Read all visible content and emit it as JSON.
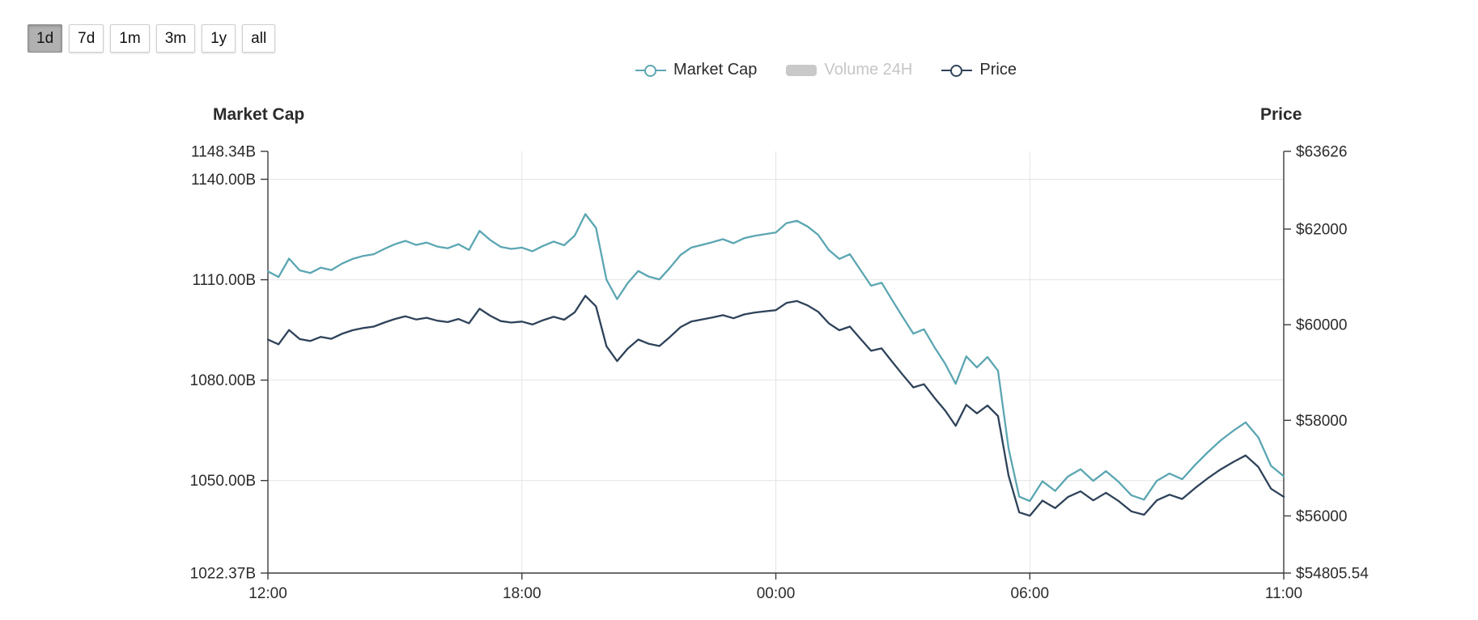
{
  "toolbar": {
    "range_buttons": [
      {
        "label": "1d",
        "active": true
      },
      {
        "label": "7d",
        "active": false
      },
      {
        "label": "1m",
        "active": false
      },
      {
        "label": "3m",
        "active": false
      },
      {
        "label": "1y",
        "active": false
      },
      {
        "label": "all",
        "active": false
      }
    ]
  },
  "legend": {
    "position": "top-center",
    "items": [
      {
        "label": "Market Cap",
        "marker": "line-circle",
        "color": "#5BA6B2",
        "enabled": true
      },
      {
        "label": "Volume 24H",
        "marker": "rect",
        "color": "#C9C9C9",
        "enabled": false
      },
      {
        "label": "Price",
        "marker": "line-circle",
        "color": "#2E4359",
        "enabled": true
      }
    ]
  },
  "chart_data": {
    "type": "line",
    "title": "",
    "left_axis": {
      "title": "Market Cap",
      "min": 1022.37,
      "max": 1148.34,
      "unit": "B",
      "ticks": [
        {
          "label": "1148.34B",
          "value": 1148.34
        },
        {
          "label": "1140.00B",
          "value": 1140
        },
        {
          "label": "1110.00B",
          "value": 1110
        },
        {
          "label": "1080.00B",
          "value": 1080
        },
        {
          "label": "1050.00B",
          "value": 1050
        },
        {
          "label": "1022.37B",
          "value": 1022.37
        }
      ]
    },
    "right_axis": {
      "title": "Price",
      "min": 54805.54,
      "max": 63626,
      "unit": "$",
      "ticks": [
        {
          "label": "$63626",
          "value": 63626
        },
        {
          "label": "$62000",
          "value": 62000
        },
        {
          "label": "$60000",
          "value": 60000
        },
        {
          "label": "$58000",
          "value": 58000
        },
        {
          "label": "$56000",
          "value": 56000
        },
        {
          "label": "$54805.54",
          "value": 54805.54
        }
      ]
    },
    "x_axis": {
      "labels": [
        {
          "label": "12:00",
          "pos": 0
        },
        {
          "label": "18:00",
          "pos": 0.25
        },
        {
          "label": "00:00",
          "pos": 0.5
        },
        {
          "label": "06:00",
          "pos": 0.75
        },
        {
          "label": "11:00",
          "pos": 1
        }
      ]
    },
    "gridlines": {
      "vertical_at": [
        0.25,
        0.5,
        0.75
      ],
      "horizontal": true
    },
    "x_times": [
      "12:00",
      "12:15",
      "12:30",
      "12:45",
      "13:00",
      "13:15",
      "13:30",
      "13:45",
      "14:00",
      "14:15",
      "14:30",
      "14:45",
      "15:00",
      "15:15",
      "15:30",
      "15:45",
      "16:00",
      "16:15",
      "16:30",
      "16:45",
      "17:00",
      "17:15",
      "17:30",
      "17:45",
      "18:00",
      "18:15",
      "18:30",
      "18:45",
      "19:00",
      "19:15",
      "19:30",
      "19:45",
      "20:00",
      "20:15",
      "20:30",
      "20:45",
      "21:00",
      "21:15",
      "21:30",
      "21:45",
      "22:00",
      "22:15",
      "22:30",
      "22:45",
      "23:00",
      "23:15",
      "23:30",
      "23:45",
      "00:00",
      "00:15",
      "00:30",
      "00:45",
      "01:00",
      "01:15",
      "01:30",
      "01:45",
      "02:00",
      "02:15",
      "02:30",
      "02:45",
      "03:00",
      "03:15",
      "03:30",
      "03:45",
      "04:00",
      "04:15",
      "04:30",
      "04:45",
      "05:00",
      "05:15",
      "05:30",
      "05:45",
      "06:00",
      "06:15",
      "06:30",
      "06:45",
      "07:00",
      "07:15",
      "07:30",
      "07:45",
      "08:00",
      "08:15",
      "08:30",
      "08:45",
      "09:00",
      "09:15",
      "09:30",
      "09:45",
      "10:00",
      "10:15",
      "10:30",
      "10:45",
      "11:00"
    ],
    "series": [
      {
        "name": "Market Cap",
        "axis": "left",
        "color": "#5BA6B2",
        "unit": "B",
        "values": [
          1112.5,
          1110.8,
          1116.3,
          1112.8,
          1112.0,
          1113.6,
          1112.9,
          1114.8,
          1116.2,
          1117.1,
          1117.6,
          1119.2,
          1120.6,
          1121.6,
          1120.4,
          1121.1,
          1119.9,
          1119.4,
          1120.6,
          1118.9,
          1124.6,
          1121.9,
          1119.8,
          1119.2,
          1119.6,
          1118.5,
          1120.1,
          1121.4,
          1120.3,
          1123.2,
          1129.6,
          1125.5,
          1110.0,
          1104.2,
          1109.0,
          1112.6,
          1110.9,
          1110.1,
          1113.6,
          1117.4,
          1119.6,
          1120.4,
          1121.2,
          1122.1,
          1120.9,
          1122.4,
          1123.1,
          1123.6,
          1124.1,
          1126.9,
          1127.6,
          1125.9,
          1123.4,
          1118.9,
          1116.2,
          1117.6,
          1112.9,
          1108.2,
          1109.1,
          1103.9,
          1098.8,
          1093.9,
          1095.2,
          1089.8,
          1084.9,
          1078.9,
          1087.1,
          1083.8,
          1086.9,
          1082.8,
          1059.5,
          1045.2,
          1043.9,
          1049.8,
          1046.9,
          1051.2,
          1053.4,
          1049.9,
          1052.8,
          1049.6,
          1045.6,
          1044.3,
          1049.9,
          1052.1,
          1050.4,
          1054.6,
          1058.4,
          1061.9,
          1064.8,
          1067.4,
          1062.9,
          1054.4,
          1051.3
        ]
      },
      {
        "name": "Price",
        "axis": "right",
        "color": "#2E4359",
        "unit": "$",
        "values": [
          59690,
          59590,
          59890,
          59700,
          59660,
          59745,
          59705,
          59810,
          59885,
          59930,
          59960,
          60045,
          60120,
          60175,
          60110,
          60145,
          60085,
          60055,
          60120,
          60030,
          60335,
          60190,
          60075,
          60045,
          60065,
          60005,
          60095,
          60165,
          60105,
          60260,
          60605,
          60385,
          59550,
          59240,
          59500,
          59690,
          59600,
          59555,
          59745,
          59950,
          60065,
          60110,
          60150,
          60200,
          60135,
          60215,
          60255,
          60280,
          60305,
          60455,
          60495,
          60405,
          60270,
          60030,
          59885,
          59960,
          59705,
          59455,
          59505,
          59225,
          58950,
          58690,
          58755,
          58470,
          58205,
          57885,
          58325,
          58145,
          58310,
          58090,
          56840,
          56075,
          56005,
          56320,
          56165,
          56395,
          56515,
          56325,
          56485,
          56310,
          56095,
          56025,
          56325,
          56445,
          56355,
          56580,
          56785,
          56970,
          57125,
          57265,
          57025,
          56570,
          56400
        ]
      }
    ]
  }
}
